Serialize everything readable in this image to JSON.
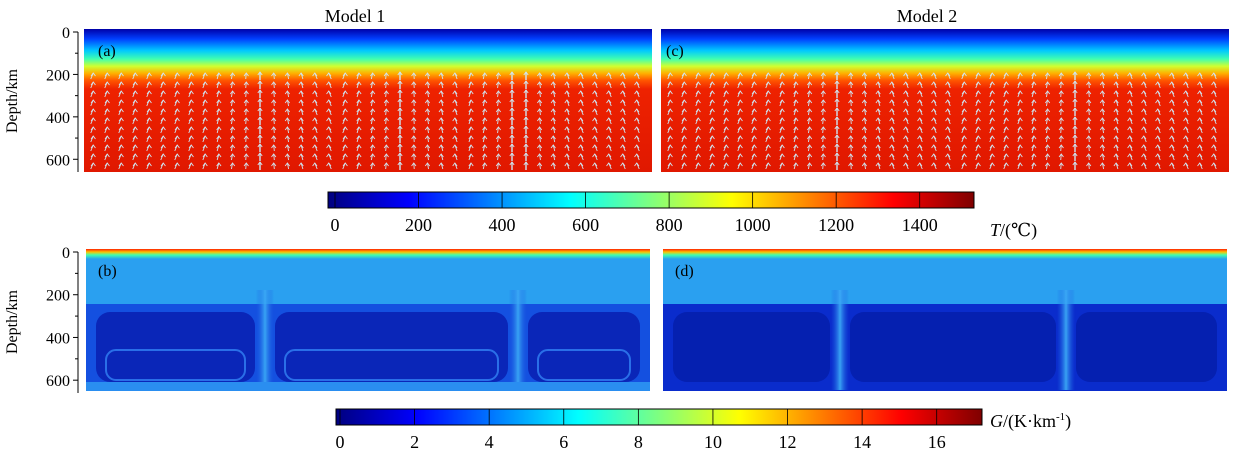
{
  "chart_data": {
    "type": "heatmap",
    "model_titles": [
      "Model 1",
      "Model 2"
    ],
    "depth_axis": {
      "label": "Depth/km",
      "range": [
        0,
        660
      ],
      "ticks": [
        0,
        200,
        400,
        600
      ]
    },
    "panels": [
      {
        "label": "(a)",
        "model": "Model 1",
        "field": "temperature",
        "vectors": true
      },
      {
        "label": "(c)",
        "model": "Model 2",
        "field": "temperature",
        "vectors": true
      },
      {
        "label": "(b)",
        "model": "Model 1",
        "field": "gradient",
        "vectors": false
      },
      {
        "label": "(d)",
        "model": "Model 2",
        "field": "gradient",
        "vectors": false
      }
    ],
    "temperature_colorbar": {
      "label_var": "T",
      "label_unit": "/(℃)",
      "range": [
        0,
        1530
      ],
      "ticks": [
        0,
        200,
        400,
        600,
        800,
        1000,
        1200,
        1400
      ]
    },
    "gradient_colorbar": {
      "label_var": "G",
      "label_unit": "/(K·km",
      "label_exp": "-1",
      "label_close": ")",
      "range": [
        0,
        17
      ],
      "ticks": [
        0,
        2,
        4,
        6,
        8,
        10,
        12,
        14,
        16
      ]
    },
    "colors": {
      "jet": [
        "#00007f",
        "#0000ff",
        "#007fff",
        "#00ffff",
        "#7fff7f",
        "#ffff00",
        "#ff7f00",
        "#ff0000",
        "#7f0000"
      ],
      "arrow": "#cfe6f2"
    }
  }
}
